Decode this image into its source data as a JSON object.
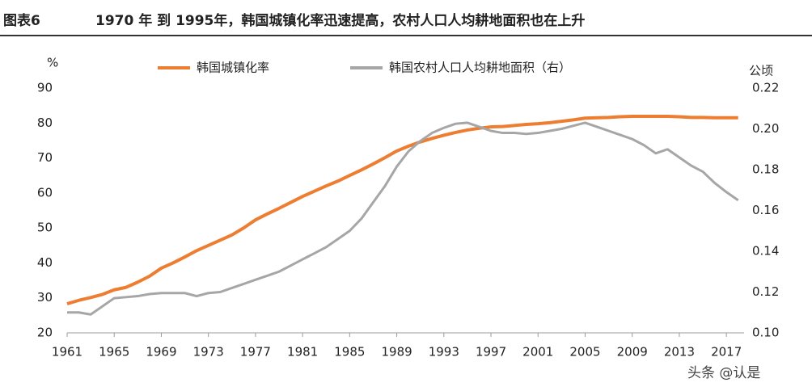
{
  "chart_data": {
    "type": "line",
    "figure_label": "图表6",
    "title": "1970 年 到 1995年，韩国城镇化率迅速提高，农村人口人均耕地面积也在上升",
    "y_label": "%",
    "y2_label": "公顷",
    "watermark": "头条 @认是",
    "legend": "top",
    "grid": false,
    "x": [
      1961,
      1962,
      1963,
      1964,
      1965,
      1966,
      1967,
      1968,
      1969,
      1970,
      1971,
      1972,
      1973,
      1974,
      1975,
      1976,
      1977,
      1978,
      1979,
      1980,
      1981,
      1982,
      1983,
      1984,
      1985,
      1986,
      1987,
      1988,
      1989,
      1990,
      1991,
      1992,
      1993,
      1994,
      1995,
      1996,
      1997,
      1998,
      1999,
      2000,
      2001,
      2002,
      2003,
      2004,
      2005,
      2006,
      2007,
      2008,
      2009,
      2010,
      2011,
      2012,
      2013,
      2014,
      2015,
      2016,
      2017,
      2018
    ],
    "xlim": [
      1961,
      2018.5
    ],
    "xticks": [
      1961,
      1965,
      1969,
      1973,
      1977,
      1981,
      1985,
      1989,
      1993,
      1997,
      2001,
      2005,
      2009,
      2013,
      2017
    ],
    "ylim": [
      20,
      90
    ],
    "yticks": [
      20,
      30,
      40,
      50,
      60,
      70,
      80,
      90
    ],
    "y2lim": [
      0.1,
      0.22
    ],
    "y2ticks": [
      {
        "value": 0.1,
        "label": "0.10"
      },
      0.12,
      0.14,
      0.16,
      0.18,
      {
        "value": 0.2,
        "label": "0.20"
      },
      0.22
    ],
    "series": [
      {
        "name": "韩国城镇化率",
        "color": "#ED7D31",
        "axis": "y",
        "values": [
          28.3,
          29.3,
          30.1,
          31.0,
          32.3,
          33.0,
          34.5,
          36.2,
          38.5,
          40.0,
          41.7,
          43.5,
          45.0,
          46.5,
          48.0,
          50.0,
          52.3,
          54.0,
          55.6,
          57.3,
          59.0,
          60.5,
          62.0,
          63.4,
          65.0,
          66.6,
          68.3,
          70.1,
          72.0,
          73.4,
          74.6,
          75.6,
          76.5,
          77.3,
          78.0,
          78.5,
          78.9,
          79.0,
          79.3,
          79.6,
          79.8,
          80.1,
          80.5,
          80.9,
          81.4,
          81.5,
          81.6,
          81.8,
          81.9,
          81.9,
          81.9,
          81.9,
          81.8,
          81.6,
          81.6,
          81.5,
          81.5,
          81.5
        ]
      },
      {
        "name": "韩国农村人口人均耕地面积（右）",
        "color": "#A6A6A6",
        "axis": "y2",
        "values": [
          0.11,
          0.11,
          0.109,
          0.113,
          0.117,
          0.1175,
          0.118,
          0.119,
          0.1195,
          0.1195,
          0.1195,
          0.118,
          0.1195,
          0.12,
          0.122,
          0.124,
          0.126,
          0.128,
          0.13,
          0.133,
          0.136,
          0.139,
          0.142,
          0.146,
          0.15,
          0.156,
          0.164,
          0.172,
          0.1815,
          0.189,
          0.194,
          0.198,
          0.2005,
          0.2025,
          0.203,
          0.201,
          0.199,
          0.198,
          0.198,
          0.1975,
          0.198,
          0.199,
          0.2,
          0.2015,
          0.203,
          0.201,
          0.199,
          0.197,
          0.195,
          0.192,
          0.188,
          0.19,
          0.186,
          0.182,
          0.179,
          0.1735,
          0.169,
          0.165
        ]
      }
    ]
  }
}
